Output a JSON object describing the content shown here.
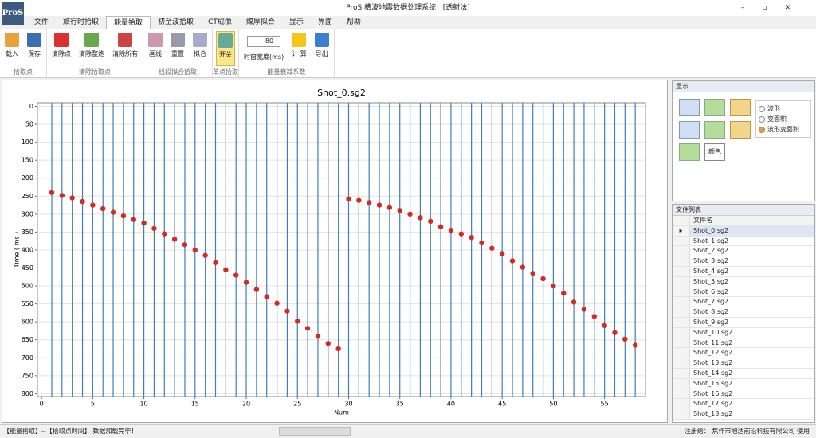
{
  "window": {
    "title": "ProS 槽波地震数据处理系统",
    "mode": "[透射法]"
  },
  "menu": [
    "文件",
    "旅行时拾取",
    "能量拾取",
    "初至波拾取",
    "CT成像",
    "煤厚拟合",
    "显示",
    "界面",
    "帮助"
  ],
  "ribbon": {
    "groups": [
      {
        "label": "拾取点",
        "buttons": [
          "载入",
          "保存"
        ]
      },
      {
        "label": "清除拾取点",
        "buttons": [
          "清除点",
          "清除整炮",
          "清除所有"
        ]
      },
      {
        "label": "线段拟合拾取",
        "buttons": [
          "画线",
          "重置",
          "拟合"
        ]
      },
      {
        "label": "单点拾取",
        "buttons": [
          "开关"
        ]
      },
      {
        "label": "能量衰减系数",
        "window_value": 80,
        "window_label": "时窗宽度(ms)",
        "buttons": [
          "计 算",
          "导出"
        ]
      }
    ]
  },
  "chart_data": {
    "type": "scatter",
    "title": "Shot_0.sg2",
    "x_label": "Num",
    "y_label": "Time ( ms )",
    "color": "#d42a20",
    "trace_color": "#3b7fbf",
    "x": [
      1,
      2,
      3,
      4,
      5,
      6,
      7,
      8,
      9,
      10,
      11,
      12,
      13,
      14,
      15,
      16,
      17,
      18,
      19,
      20,
      21,
      22,
      23,
      24,
      25,
      26,
      27,
      28,
      29,
      30,
      31,
      32,
      33,
      34,
      35,
      36,
      37,
      38,
      39,
      40,
      41,
      42,
      43,
      44,
      45,
      46,
      47,
      48,
      49,
      50,
      51,
      52,
      53,
      54,
      55,
      56,
      57,
      58
    ],
    "values": [
      240,
      248,
      255,
      265,
      275,
      285,
      295,
      305,
      315,
      325,
      340,
      355,
      370,
      385,
      400,
      415,
      435,
      455,
      470,
      490,
      510,
      530,
      548,
      570,
      598,
      618,
      640,
      660,
      675,
      258,
      262,
      268,
      275,
      282,
      290,
      300,
      310,
      320,
      335,
      345,
      355,
      365,
      380,
      395,
      410,
      430,
      448,
      465,
      480,
      500,
      520,
      545,
      565,
      585,
      610,
      630,
      648,
      665
    ],
    "xlim": [
      -0.4,
      59
    ],
    "ylim": [
      -10,
      808
    ],
    "y_inverted": true,
    "grid": true,
    "xticks": [
      0,
      5,
      10,
      15,
      20,
      25,
      30,
      35,
      40,
      45,
      50,
      55
    ],
    "yticks": [
      0,
      50,
      100,
      150,
      200,
      250,
      300,
      350,
      400,
      450,
      500,
      550,
      600,
      650,
      700,
      750,
      800
    ]
  },
  "display_panel": {
    "title": "显示",
    "options": [
      "波形",
      "变面积",
      "波形变面积"
    ],
    "selected": 2,
    "color_button": "颜色"
  },
  "file_list": {
    "title": "文件列表",
    "header": "文件名",
    "selected": 0,
    "files": [
      "Shot_0.sg2",
      "Shot_1.sg2",
      "Shot_2.sg2",
      "Shot_3.sg2",
      "Shot_4.sg2",
      "Shot_5.sg2",
      "Shot_6.sg2",
      "Shot_7.sg2",
      "Shot_8.sg2",
      "Shot_9.sg2",
      "Shot_10.sg2",
      "Shot_11.sg2",
      "Shot_12.sg2",
      "Shot_13.sg2",
      "Shot_14.sg2",
      "Shot_15.sg2",
      "Shot_16.sg2",
      "Shot_17.sg2",
      "Shot_18.sg2"
    ]
  },
  "status": {
    "left": "【能量拾取】--【拾取点时间】 数据加载完毕！",
    "right": "注册给： 焦作市旭达前沿科技有限公司 使用"
  }
}
